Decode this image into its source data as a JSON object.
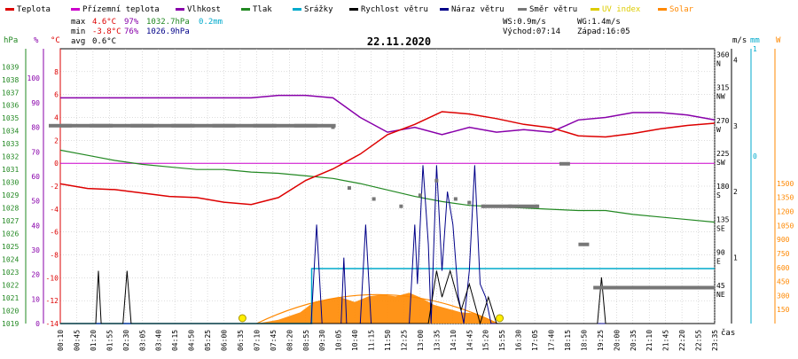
{
  "title": "22.11.2020",
  "legend": [
    {
      "label": "Teplota",
      "color": "#dd0000"
    },
    {
      "label": "Přízemní teplota",
      "color": "#cc00cc"
    },
    {
      "label": "Vlhkost",
      "color": "#8800aa"
    },
    {
      "label": "Tlak",
      "color": "#228822"
    },
    {
      "label": "Srážky",
      "color": "#00aacc"
    },
    {
      "label": "Rychlost větru",
      "color": "#000000"
    },
    {
      "label": "Náraz větru",
      "color": "#000088"
    },
    {
      "label": "Směr větru",
      "color": "#777777"
    },
    {
      "label": "UV index",
      "color": "#ddcc00"
    },
    {
      "label": "Solar",
      "color": "#ff8800"
    }
  ],
  "stats": {
    "max_label": "max",
    "max_temp": "4.6°C",
    "max_hum": "97%",
    "max_press": "1032.7hPa",
    "max_rain": "0.2mm",
    "min_label": "min",
    "min_temp": "-3.8°C",
    "min_hum": "76%",
    "min_press": "1026.9hPa",
    "avg_label": "avg",
    "avg_temp": "0.6°C"
  },
  "wind_info": {
    "ws": "WS:0.9m/s",
    "wg": "WG:1.4m/s",
    "sunrise": "Východ:07:14",
    "sunset": "Západ:16:05"
  },
  "axis_units": {
    "hpa": "hPa",
    "pct": "%",
    "degc": "°C",
    "ms": "m/s",
    "mm": "mm",
    "w": "W",
    "cas": "čas"
  },
  "colors": {
    "temp": "#dd0000",
    "ground": "#cc00cc",
    "hum": "#8800aa",
    "press": "#228822",
    "rain": "#00aacc",
    "wind": "#000000",
    "gust": "#000088",
    "dir": "#777777",
    "uv": "#ddcc00",
    "solar": "#ff8800",
    "grid": "#bbbbbb"
  },
  "chart_data": {
    "type": "line",
    "title": "22.11.2020",
    "x_ticks": [
      "00:10",
      "00:45",
      "01:20",
      "01:55",
      "02:30",
      "03:05",
      "03:40",
      "04:15",
      "04:50",
      "05:25",
      "06:00",
      "06:35",
      "07:10",
      "07:45",
      "08:20",
      "08:55",
      "09:30",
      "10:05",
      "10:40",
      "11:15",
      "11:50",
      "12:25",
      "13:00",
      "13:35",
      "14:10",
      "14:45",
      "15:20",
      "15:55",
      "16:30",
      "17:05",
      "17:40",
      "18:15",
      "18:50",
      "19:25",
      "20:00",
      "20:35",
      "21:10",
      "21:45",
      "22:20",
      "22:55",
      "23:35"
    ],
    "axes": {
      "pressure": {
        "unit": "hPa",
        "ticks": [
          1019,
          1020,
          1021,
          1022,
          1023,
          1024,
          1025,
          1026,
          1027,
          1028,
          1029,
          1030,
          1031,
          1032,
          1033,
          1034,
          1035,
          1036,
          1037,
          1038,
          1039
        ]
      },
      "humidity": {
        "unit": "%",
        "ticks": [
          0,
          10,
          20,
          30,
          40,
          50,
          60,
          70,
          80,
          90,
          100
        ]
      },
      "temperature": {
        "unit": "°C",
        "ticks": [
          -14,
          -12,
          -10,
          -8,
          -6,
          -4,
          -2,
          0,
          2,
          4,
          6,
          8
        ]
      },
      "wind_dir": {
        "ticks": [
          "45",
          "NE",
          "90",
          "E",
          "135",
          "SE",
          "180",
          "S",
          "225",
          "SW",
          "270",
          "W",
          "315",
          "NW",
          "360",
          "N"
        ]
      },
      "wind_speed": {
        "unit": "m/s",
        "ticks": [
          1,
          2,
          3,
          4
        ]
      },
      "rain": {
        "unit": "mm",
        "ticks": [
          0,
          1
        ]
      },
      "solar": {
        "unit": "W",
        "ticks": [
          150,
          300,
          450,
          600,
          750,
          900,
          1050,
          1200,
          1350,
          1500
        ]
      }
    },
    "series": [
      {
        "name": "Teplota",
        "unit": "°C",
        "x": [
          0,
          1,
          2,
          3,
          4,
          5,
          6,
          7,
          8,
          9,
          10,
          11,
          12,
          13,
          14,
          15,
          16,
          17,
          18,
          19,
          20,
          21,
          22,
          23,
          24
        ],
        "values": [
          -1.8,
          -2.2,
          -2.3,
          -2.6,
          -2.9,
          -3.0,
          -3.4,
          -3.6,
          -3.0,
          -1.5,
          -0.5,
          0.8,
          2.5,
          3.4,
          4.5,
          4.3,
          3.9,
          3.4,
          3.1,
          2.4,
          2.3,
          2.6,
          3.0,
          3.3,
          3.5
        ]
      },
      {
        "name": "Přízemní teplota",
        "unit": "°C",
        "x": [
          0,
          24
        ],
        "values": [
          0,
          0
        ]
      },
      {
        "name": "Vlhkost",
        "unit": "%",
        "x": [
          0,
          1,
          2,
          3,
          4,
          5,
          6,
          7,
          8,
          9,
          10,
          11,
          12,
          13,
          14,
          15,
          16,
          17,
          18,
          19,
          20,
          21,
          22,
          23,
          24
        ],
        "values": [
          92,
          92,
          92,
          92,
          92,
          92,
          92,
          92,
          93,
          93,
          92,
          84,
          78,
          80,
          77,
          80,
          78,
          79,
          78,
          83,
          84,
          86,
          86,
          85,
          83
        ]
      },
      {
        "name": "Tlak",
        "unit": "hPa",
        "x": [
          0,
          1,
          2,
          3,
          4,
          5,
          6,
          7,
          8,
          9,
          10,
          11,
          12,
          13,
          14,
          15,
          16,
          17,
          18,
          19,
          20,
          21,
          22,
          23,
          24
        ],
        "values": [
          1032.5,
          1032.1,
          1031.7,
          1031.4,
          1031.2,
          1031.0,
          1031.0,
          1030.8,
          1030.7,
          1030.5,
          1030.3,
          1029.9,
          1029.4,
          1028.9,
          1028.5,
          1028.2,
          1028.1,
          1028.0,
          1027.9,
          1027.8,
          1027.8,
          1027.5,
          1027.3,
          1027.1,
          1026.9
        ]
      },
      {
        "name": "Srážky",
        "unit": "mm",
        "x": [
          0,
          9.2,
          9.25,
          24
        ],
        "values": [
          0,
          0,
          0.2,
          0.2
        ]
      },
      {
        "name": "Rychlost větru",
        "unit": "m/s",
        "x": [
          0,
          1.3,
          1.4,
          1.5,
          2.3,
          2.45,
          2.6,
          13.5,
          13.8,
          14.0,
          14.3,
          14.7,
          15.0,
          15.4,
          15.7,
          16.0,
          19.7,
          19.85,
          20.0,
          24
        ],
        "values": [
          0,
          0,
          0.8,
          0,
          0,
          0.8,
          0,
          0,
          0.8,
          0.4,
          0.8,
          0.2,
          0.6,
          0,
          0.4,
          0,
          0,
          0.7,
          0,
          0
        ]
      },
      {
        "name": "Náraz větru",
        "unit": "m/s",
        "x": [
          0,
          9.2,
          9.4,
          9.6,
          10.3,
          10.4,
          10.5,
          11.0,
          11.2,
          11.4,
          12.8,
          13.0,
          13.1,
          13.3,
          13.5,
          13.6,
          13.8,
          14.0,
          14.2,
          14.4,
          14.6,
          14.8,
          15.0,
          15.2,
          15.4,
          15.6,
          15.8,
          16.0,
          24
        ],
        "values": [
          0,
          0,
          1.5,
          0,
          0,
          1.0,
          0,
          0,
          1.5,
          0,
          0,
          1.5,
          0.6,
          2.4,
          1.2,
          0,
          2.4,
          0.8,
          2.0,
          1.5,
          0.4,
          0,
          0.8,
          2.4,
          0.6,
          0.4,
          0,
          0,
          0
        ]
      },
      {
        "name": "Směr větru",
        "unit": "°",
        "x": [
          0,
          1.5,
          3,
          4.5,
          6,
          7.5,
          9,
          10,
          10.6,
          11.5,
          12.5,
          13.2,
          13.8,
          14.5,
          15.0,
          15.5,
          16.5,
          17.5,
          18.5,
          19.2,
          20,
          21,
          22,
          23.5
        ],
        "values": [
          270,
          270,
          270,
          270,
          270,
          270,
          270,
          268,
          185,
          170,
          160,
          175,
          195,
          170,
          165,
          160,
          160,
          160,
          218,
          108,
          49,
          49,
          49,
          49
        ]
      },
      {
        "name": "Solar",
        "unit": "W",
        "x": [
          7.2,
          8.0,
          8.8,
          9.3,
          9.8,
          10.3,
          10.8,
          11.3,
          11.8,
          12.3,
          12.8,
          13.2,
          13.7,
          14.2,
          14.7,
          15.2,
          15.6,
          16.05
        ],
        "values": [
          0,
          40,
          120,
          230,
          260,
          280,
          230,
          290,
          310,
          290,
          330,
          280,
          200,
          160,
          120,
          110,
          60,
          0
        ]
      },
      {
        "name": "UV index",
        "unit": "",
        "x": [
          7.2,
          16.05
        ],
        "values": [
          0,
          0
        ]
      }
    ]
  }
}
